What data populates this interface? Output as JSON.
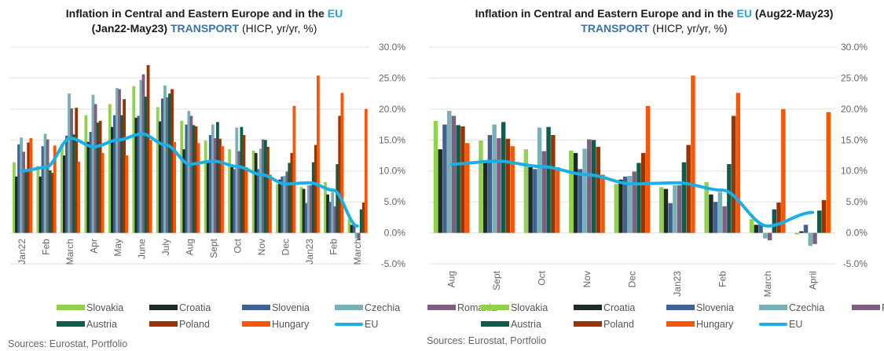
{
  "colors": {
    "Slovakia": "#92d050",
    "Croatia": "#1e2a25",
    "Slovenia": "#3e6391",
    "Czechia": "#79b0b6",
    "Romania": "#7f5f7f",
    "Austria": "#0e5c4a",
    "Poland": "#993300",
    "Hungary": "#ff5500",
    "EU": "#1aafe6"
  },
  "chart_data": [
    {
      "type": "bar",
      "title_parts": {
        "main": "Inflation in Central and Eastern Europe and in the ",
        "eu": "EU",
        "period": "(Jan22-May23) ",
        "transport": "TRANSPORT",
        "unit": "  (HICP, yr/yr, %)"
      },
      "categories": [
        "Jan22",
        "Feb",
        "March",
        "Apr",
        "May",
        "June",
        "July",
        "Aug",
        "Sept",
        "Oct",
        "Nov",
        "Dec",
        "Jan23",
        "Feb",
        "March"
      ],
      "ylim": [
        -5,
        30
      ],
      "yticks": [
        "30.0%",
        "25.0%",
        "20.0%",
        "15.0%",
        "10.0%",
        "5.0%",
        "0.0%",
        "-5.0%"
      ],
      "grid": true,
      "legend": "bottom",
      "series": [
        {
          "name": "Slovakia",
          "values": [
            11.4,
            10.8,
            14.4,
            19.0,
            20.8,
            23.7,
            20.3,
            18.1,
            14.9,
            13.5,
            13.3,
            7.9,
            7.4,
            8.2,
            2.2
          ]
        },
        {
          "name": "Croatia",
          "values": [
            9.1,
            9.1,
            12.5,
            14.7,
            17.1,
            18.6,
            18.0,
            13.5,
            11.7,
            10.6,
            12.9,
            8.6,
            7.1,
            6.2,
            1.3
          ]
        },
        {
          "name": "Slovenia",
          "values": [
            14.3,
            14.0,
            15.7,
            16.3,
            19.0,
            18.9,
            21.7,
            17.5,
            15.8,
            10.3,
            10.3,
            9.1,
            4.8,
            5.0,
            1.4
          ]
        },
        {
          "name": "Czechia",
          "values": [
            15.4,
            16.0,
            22.5,
            22.3,
            23.4,
            24.7,
            23.8,
            19.7,
            17.5,
            17.0,
            13.6,
            9.2,
            7.7,
            6.6,
            -0.9
          ]
        },
        {
          "name": "Romania",
          "values": [
            13.1,
            15.1,
            20.1,
            20.8,
            23.2,
            25.6,
            21.9,
            18.9,
            15.3,
            13.2,
            15.1,
            9.9,
            7.7,
            4.3,
            -1.2
          ]
        },
        {
          "name": "Austria",
          "values": [
            10.2,
            10.1,
            15.9,
            17.8,
            19.0,
            22.0,
            22.5,
            17.4,
            17.9,
            17.1,
            15.0,
            11.3,
            11.4,
            11.1,
            3.8
          ]
        },
        {
          "name": "Poland",
          "values": [
            14.6,
            9.7,
            20.2,
            18.1,
            21.6,
            27.1,
            23.2,
            17.2,
            15.2,
            15.8,
            13.9,
            12.9,
            14.2,
            18.9,
            4.9
          ]
        },
        {
          "name": "Hungary",
          "values": [
            15.3,
            14.1,
            11.5,
            12.9,
            12.5,
            15.0,
            14.7,
            14.5,
            14.0,
            10.6,
            9.4,
            20.5,
            25.4,
            22.6,
            20.0
          ]
        }
      ],
      "line": {
        "name": "EU",
        "values": [
          10.0,
          10.6,
          15.3,
          13.9,
          15.0,
          16.0,
          14.2,
          11.1,
          11.6,
          10.7,
          9.4,
          7.9,
          8.1,
          6.9,
          1.1
        ]
      },
      "source": "Sources: Eurostat, Portfolio"
    },
    {
      "type": "bar",
      "title_parts": {
        "main": "Inflation in Central and Eastern Europe and in the ",
        "eu": "EU",
        "period": " (Aug22-May23)",
        "transport": "TRANSPORT",
        "unit": "  (HICP, yr/yr, %)"
      },
      "categories": [
        "Aug",
        "Sept",
        "Oct",
        "Nov",
        "Dec",
        "Jan23",
        "Feb",
        "March",
        "April"
      ],
      "ylim": [
        -5,
        30
      ],
      "yticks": [
        "30.0%",
        "25.0%",
        "20.0%",
        "15.0%",
        "10.0%",
        "5.0%",
        "0.0%",
        "-5.0%"
      ],
      "grid": true,
      "legend": "bottom",
      "series": [
        {
          "name": "Slovakia",
          "values": [
            18.1,
            14.9,
            13.5,
            13.3,
            7.9,
            7.4,
            8.2,
            2.2,
            -0.25
          ]
        },
        {
          "name": "Croatia",
          "values": [
            13.5,
            11.7,
            10.6,
            12.9,
            8.6,
            7.1,
            6.2,
            1.3,
            0.25
          ]
        },
        {
          "name": "Slovenia",
          "values": [
            17.5,
            15.8,
            10.3,
            10.3,
            9.1,
            4.8,
            5.0,
            1.4,
            1.3
          ]
        },
        {
          "name": "Czechia",
          "values": [
            19.7,
            17.5,
            17.0,
            13.6,
            9.2,
            7.7,
            6.6,
            -0.9,
            -2.1
          ]
        },
        {
          "name": "Romania",
          "values": [
            18.9,
            15.3,
            13.2,
            15.1,
            9.9,
            7.7,
            4.3,
            -1.2,
            -1.8
          ]
        },
        {
          "name": "Austria",
          "values": [
            17.4,
            17.9,
            17.1,
            15.0,
            11.3,
            11.4,
            11.1,
            3.8,
            3.6
          ]
        },
        {
          "name": "Poland",
          "values": [
            17.2,
            15.2,
            15.8,
            13.9,
            12.9,
            14.2,
            18.9,
            4.9,
            5.3
          ]
        },
        {
          "name": "Hungary",
          "values": [
            14.5,
            14.0,
            10.6,
            9.4,
            20.5,
            25.4,
            22.6,
            20.0,
            19.5
          ]
        }
      ],
      "line": {
        "name": "EU",
        "values": [
          11.1,
          11.6,
          10.7,
          9.4,
          7.9,
          8.1,
          6.9,
          1.1,
          3.3
        ]
      },
      "source": "Sources: Eurostat, Portfolio"
    }
  ]
}
